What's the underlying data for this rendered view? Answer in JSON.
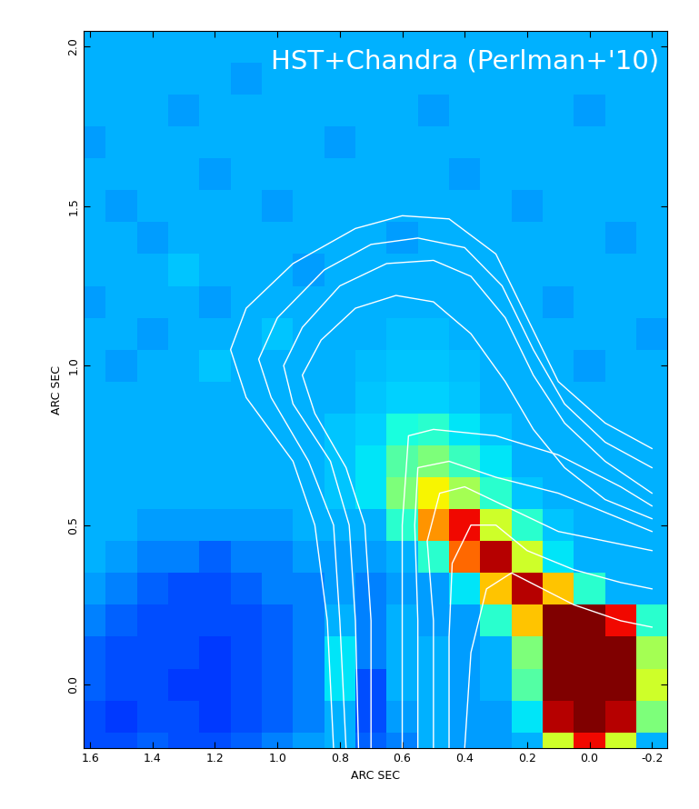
{
  "chart_data": {
    "type": "heatmap",
    "title": "HST+Chandra (Perlman+'10)",
    "x_label": "ARC SEC",
    "y_label": "ARC SEC",
    "xlim": [
      1.62,
      -0.25
    ],
    "ylim": [
      -0.2,
      2.05
    ],
    "xticks": [
      1.6,
      1.4,
      1.2,
      1.0,
      0.8,
      0.6,
      0.4,
      0.2,
      0.0,
      -0.2
    ],
    "yticks": [
      0.0,
      0.5,
      1.0,
      1.5,
      2.0
    ],
    "x": [
      1.6,
      1.5,
      1.4,
      1.3,
      1.2,
      1.1,
      1.0,
      0.9,
      0.8,
      0.7,
      0.6,
      0.5,
      0.4,
      0.3,
      0.2,
      0.1,
      0.0,
      -0.1,
      -0.2
    ],
    "y": [
      -0.2,
      -0.1,
      0.0,
      0.1,
      0.2,
      0.3,
      0.4,
      0.5,
      0.6,
      0.7,
      0.8,
      0.9,
      1.0,
      1.1,
      1.2,
      1.3,
      1.4,
      1.5,
      1.6,
      1.7,
      1.8,
      1.9,
      2.0
    ],
    "color_range": [
      0,
      1
    ],
    "cells": [
      [
        0.2,
        0.2,
        0.22,
        0.2,
        0.2,
        0.22,
        0.25,
        0.28,
        0.3,
        0.22,
        0.25,
        0.3,
        0.28,
        0.28,
        0.3,
        0.6,
        0.9,
        0.6,
        0.3
      ],
      [
        0.2,
        0.18,
        0.2,
        0.2,
        0.18,
        0.2,
        0.22,
        0.25,
        0.3,
        0.2,
        0.28,
        0.3,
        0.28,
        0.28,
        0.35,
        0.95,
        1,
        0.95,
        0.5
      ],
      [
        0.22,
        0.2,
        0.2,
        0.18,
        0.18,
        0.2,
        0.22,
        0.25,
        0.35,
        0.2,
        0.3,
        0.3,
        0.28,
        0.3,
        0.45,
        1,
        1,
        1,
        0.6
      ],
      [
        0.22,
        0.2,
        0.2,
        0.2,
        0.18,
        0.2,
        0.22,
        0.25,
        0.35,
        0.25,
        0.3,
        0.3,
        0.28,
        0.3,
        0.5,
        1,
        1,
        1,
        0.55
      ],
      [
        0.25,
        0.22,
        0.2,
        0.2,
        0.2,
        0.2,
        0.22,
        0.25,
        0.3,
        0.25,
        0.3,
        0.28,
        0.28,
        0.4,
        0.7,
        1,
        1,
        0.9,
        0.4
      ],
      [
        0.28,
        0.25,
        0.22,
        0.2,
        0.2,
        0.22,
        0.25,
        0.25,
        0.28,
        0.25,
        0.28,
        0.28,
        0.35,
        0.7,
        0.95,
        0.7,
        0.4,
        0.3,
        0.3
      ],
      [
        0.3,
        0.28,
        0.25,
        0.25,
        0.22,
        0.25,
        0.25,
        0.28,
        0.28,
        0.28,
        0.3,
        0.4,
        0.8,
        0.95,
        0.6,
        0.35,
        0.3,
        0.3,
        0.3
      ],
      [
        0.3,
        0.3,
        0.28,
        0.28,
        0.28,
        0.28,
        0.28,
        0.3,
        0.3,
        0.3,
        0.4,
        0.75,
        0.9,
        0.6,
        0.4,
        0.32,
        0.3,
        0.3,
        0.3
      ],
      [
        0.3,
        0.3,
        0.3,
        0.3,
        0.3,
        0.3,
        0.3,
        0.3,
        0.32,
        0.35,
        0.5,
        0.65,
        0.55,
        0.4,
        0.32,
        0.3,
        0.3,
        0.3,
        0.3
      ],
      [
        0.3,
        0.3,
        0.3,
        0.3,
        0.3,
        0.3,
        0.3,
        0.3,
        0.32,
        0.35,
        0.45,
        0.5,
        0.42,
        0.35,
        0.3,
        0.3,
        0.3,
        0.3,
        0.3
      ],
      [
        0.3,
        0.3,
        0.3,
        0.3,
        0.3,
        0.3,
        0.3,
        0.3,
        0.32,
        0.33,
        0.38,
        0.4,
        0.35,
        0.32,
        0.3,
        0.3,
        0.3,
        0.3,
        0.3
      ],
      [
        0.3,
        0.3,
        0.3,
        0.3,
        0.3,
        0.3,
        0.3,
        0.3,
        0.3,
        0.32,
        0.33,
        0.33,
        0.32,
        0.3,
        0.3,
        0.3,
        0.3,
        0.3,
        0.3
      ],
      [
        0.3,
        0.28,
        0.3,
        0.3,
        0.32,
        0.3,
        0.3,
        0.3,
        0.3,
        0.31,
        0.32,
        0.32,
        0.31,
        0.3,
        0.3,
        0.3,
        0.28,
        0.3,
        0.3
      ],
      [
        0.3,
        0.3,
        0.28,
        0.3,
        0.3,
        0.3,
        0.32,
        0.3,
        0.3,
        0.3,
        0.31,
        0.31,
        0.3,
        0.3,
        0.3,
        0.3,
        0.3,
        0.3,
        0.28
      ],
      [
        0.28,
        0.3,
        0.3,
        0.3,
        0.28,
        0.3,
        0.3,
        0.3,
        0.3,
        0.3,
        0.3,
        0.3,
        0.3,
        0.3,
        0.3,
        0.28,
        0.3,
        0.3,
        0.3
      ],
      [
        0.3,
        0.3,
        0.3,
        0.32,
        0.3,
        0.3,
        0.3,
        0.28,
        0.3,
        0.3,
        0.3,
        0.3,
        0.3,
        0.3,
        0.3,
        0.3,
        0.3,
        0.3,
        0.3
      ],
      [
        0.3,
        0.3,
        0.28,
        0.3,
        0.3,
        0.3,
        0.3,
        0.3,
        0.3,
        0.3,
        0.28,
        0.3,
        0.3,
        0.3,
        0.3,
        0.3,
        0.3,
        0.28,
        0.3
      ],
      [
        0.3,
        0.28,
        0.3,
        0.3,
        0.3,
        0.3,
        0.28,
        0.3,
        0.3,
        0.3,
        0.3,
        0.3,
        0.3,
        0.3,
        0.28,
        0.3,
        0.3,
        0.3,
        0.3
      ],
      [
        0.3,
        0.3,
        0.3,
        0.3,
        0.28,
        0.3,
        0.3,
        0.3,
        0.3,
        0.3,
        0.3,
        0.3,
        0.28,
        0.3,
        0.3,
        0.3,
        0.3,
        0.3,
        0.3
      ],
      [
        0.28,
        0.3,
        0.3,
        0.3,
        0.3,
        0.3,
        0.3,
        0.3,
        0.28,
        0.3,
        0.3,
        0.3,
        0.3,
        0.3,
        0.3,
        0.3,
        0.3,
        0.3,
        0.3
      ],
      [
        0.3,
        0.3,
        0.3,
        0.28,
        0.3,
        0.3,
        0.3,
        0.3,
        0.3,
        0.3,
        0.3,
        0.28,
        0.3,
        0.3,
        0.3,
        0.3,
        0.28,
        0.3,
        0.3
      ],
      [
        0.3,
        0.3,
        0.3,
        0.3,
        0.3,
        0.28,
        0.3,
        0.3,
        0.3,
        0.3,
        0.3,
        0.3,
        0.3,
        0.3,
        0.3,
        0.3,
        0.3,
        0.3,
        0.3
      ],
      [
        0.3,
        0.3,
        0.3,
        0.3,
        0.3,
        0.3,
        0.3,
        0.3,
        0.3,
        0.3,
        0.3,
        0.3,
        0.3,
        0.3,
        0.3,
        0.3,
        0.3,
        0.3,
        0.3
      ]
    ],
    "contours": [
      {
        "x": [
          0.82,
          0.84,
          0.88,
          0.95,
          1.1,
          1.15,
          1.1,
          0.95,
          0.75,
          0.6,
          0.45,
          0.3,
          0.2,
          0.1,
          -0.05,
          -0.2
        ],
        "y": [
          -0.2,
          0.2,
          0.5,
          0.7,
          0.9,
          1.05,
          1.18,
          1.32,
          1.43,
          1.47,
          1.46,
          1.35,
          1.15,
          0.95,
          0.82,
          0.74
        ]
      },
      {
        "x": [
          0.78,
          0.8,
          0.82,
          0.9,
          1.02,
          1.06,
          1.0,
          0.85,
          0.7,
          0.55,
          0.4,
          0.28,
          0.18,
          0.08,
          -0.05,
          -0.2
        ],
        "y": [
          -0.2,
          0.2,
          0.5,
          0.7,
          0.9,
          1.02,
          1.15,
          1.3,
          1.38,
          1.4,
          1.37,
          1.25,
          1.05,
          0.88,
          0.76,
          0.68
        ]
      },
      {
        "x": [
          0.74,
          0.75,
          0.77,
          0.83,
          0.95,
          0.98,
          0.92,
          0.8,
          0.65,
          0.5,
          0.38,
          0.27,
          0.18,
          0.08,
          -0.05,
          -0.2
        ],
        "y": [
          -0.2,
          0.2,
          0.5,
          0.7,
          0.88,
          1.0,
          1.12,
          1.25,
          1.32,
          1.33,
          1.28,
          1.15,
          0.97,
          0.82,
          0.7,
          0.6
        ]
      },
      {
        "x": [
          0.7,
          0.7,
          0.72,
          0.78,
          0.88,
          0.92,
          0.86,
          0.75,
          0.62,
          0.5,
          0.38,
          0.27,
          0.18,
          0.08,
          -0.05,
          -0.2
        ],
        "y": [
          -0.2,
          0.2,
          0.5,
          0.68,
          0.85,
          0.97,
          1.08,
          1.18,
          1.22,
          1.2,
          1.1,
          0.95,
          0.8,
          0.68,
          0.58,
          0.52
        ]
      },
      {
        "x": [
          0.6,
          0.6,
          0.6,
          0.58,
          0.5,
          0.3,
          0.1,
          -0.1,
          -0.2
        ],
        "y": [
          -0.2,
          0.2,
          0.5,
          0.78,
          0.8,
          0.78,
          0.72,
          0.62,
          0.56
        ]
      },
      {
        "x": [
          0.55,
          0.55,
          0.56,
          0.55,
          0.45,
          0.3,
          0.1,
          -0.1,
          -0.2
        ],
        "y": [
          -0.2,
          0.2,
          0.5,
          0.68,
          0.7,
          0.65,
          0.6,
          0.52,
          0.48
        ]
      },
      {
        "x": [
          0.5,
          0.5,
          0.52,
          0.48,
          0.4,
          0.25,
          0.1,
          -0.05,
          -0.2
        ],
        "y": [
          -0.2,
          0.2,
          0.45,
          0.6,
          0.62,
          0.55,
          0.48,
          0.45,
          0.42
        ]
      },
      {
        "x": [
          0.45,
          0.45,
          0.44,
          0.38,
          0.3,
          0.2,
          0.05,
          -0.1,
          -0.2
        ],
        "y": [
          -0.2,
          0.15,
          0.38,
          0.5,
          0.5,
          0.42,
          0.36,
          0.32,
          0.3
        ]
      },
      {
        "x": [
          0.4,
          0.38,
          0.33,
          0.25,
          0.15,
          0.05,
          -0.1,
          -0.2
        ],
        "y": [
          -0.2,
          0.1,
          0.3,
          0.35,
          0.3,
          0.25,
          0.2,
          0.18
        ]
      }
    ]
  }
}
